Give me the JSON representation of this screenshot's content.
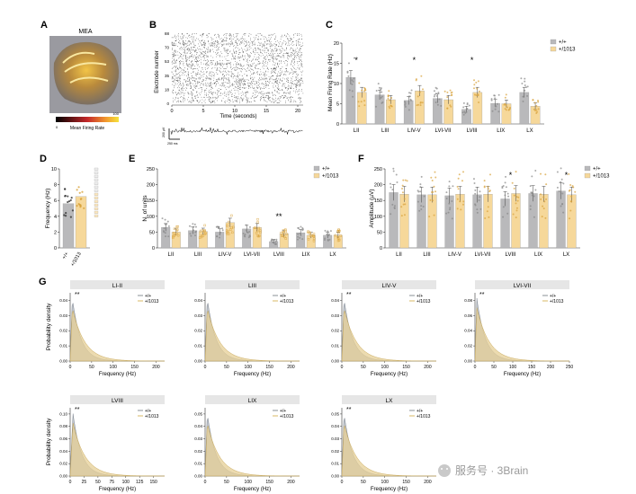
{
  "panels": {
    "A": {
      "letter": "A",
      "title": "MEA",
      "scale_min": "0",
      "scale_max": "100",
      "scale_label": "Mean Firing Rate"
    },
    "B": {
      "letter": "B",
      "ylabel": "Electrode number",
      "yticks": [
        "88",
        "70",
        "53",
        "35",
        "18",
        "0"
      ],
      "xticks": [
        "0",
        "5",
        "10",
        "15",
        "20"
      ],
      "xlabel": "Time (seconds)",
      "scale_v": "200 µV",
      "scale_t": "250 ms"
    },
    "C": {
      "letter": "C",
      "ylabel": "Mean Firing Rate (Hz)",
      "yticks": [
        "0",
        "5",
        "10",
        "15",
        "20"
      ],
      "ymax": 20,
      "legend": [
        "+/+",
        "+/1013"
      ],
      "groups": [
        "LII",
        "LIII",
        "LIV-V",
        "LVI-VII",
        "LVIII",
        "LIX",
        "LX"
      ],
      "wt": [
        11.5,
        7.2,
        5.8,
        6.3,
        3.6,
        5.1,
        7.8
      ],
      "mut": [
        7.8,
        6.0,
        8.2,
        6.0,
        7.8,
        5.0,
        4.4
      ],
      "sig": [
        "*",
        "",
        "*",
        "",
        "*",
        "",
        ""
      ]
    },
    "D": {
      "letter": "D",
      "ylabel": "Frequency (Hz)",
      "yticks": [
        "0",
        "2",
        "4",
        "6",
        "8",
        "10"
      ],
      "ymax": 10,
      "xticks": [
        "+/+",
        "+/1013"
      ],
      "wt": 5.6,
      "mut": 6.5
    },
    "E": {
      "letter": "E",
      "ylabel": "N. of units",
      "yticks": [
        "0",
        "50",
        "100",
        "150",
        "200",
        "250"
      ],
      "ymax": 250,
      "legend": [
        "+/+",
        "+/1013"
      ],
      "groups": [
        "LII",
        "LIII",
        "LIV-V",
        "LVI-VII",
        "LVIII",
        "LIX",
        "LX"
      ],
      "wt": [
        65,
        55,
        50,
        60,
        20,
        48,
        40
      ],
      "mut": [
        50,
        52,
        80,
        65,
        45,
        40,
        40
      ],
      "sig": [
        "",
        "",
        "",
        "",
        "**",
        "",
        ""
      ]
    },
    "F": {
      "letter": "F",
      "ylabel": "Amplitude (µV)",
      "yticks": [
        "0",
        "50",
        "100",
        "150",
        "200",
        "250"
      ],
      "ymax": 250,
      "legend": [
        "+/+",
        "+/1013"
      ],
      "groups": [
        "LII",
        "LIII",
        "LIV-V",
        "LVI-VII",
        "LVIII",
        "LIX",
        "LX"
      ],
      "wt": [
        175,
        168,
        165,
        168,
        155,
        172,
        180
      ],
      "mut": [
        170,
        168,
        170,
        170,
        172,
        170,
        168
      ],
      "sig": [
        "",
        "",
        "",
        "",
        "*",
        "",
        "*"
      ]
    },
    "G": {
      "letter": "G",
      "ylabel": "Probability density",
      "xlabel": "Frequency (Hz)",
      "legend": [
        "+/+",
        "+/1013"
      ],
      "plots": [
        {
          "title": "LI-II",
          "sig": "**",
          "yticks": [
            "0.00",
            "0.01",
            "0.02",
            "0.03",
            "0.04"
          ],
          "xticks": [
            "0",
            "50",
            "100",
            "150",
            "200"
          ],
          "ymax": 0.045,
          "xmax": 220
        },
        {
          "title": "LIII",
          "sig": "",
          "yticks": [
            "0.00",
            "0.01",
            "0.02",
            "0.03",
            "0.04"
          ],
          "xticks": [
            "0",
            "50",
            "100",
            "150",
            "200"
          ],
          "ymax": 0.045,
          "xmax": 220
        },
        {
          "title": "LIV-V",
          "sig": "**",
          "yticks": [
            "0.00",
            "0.01",
            "0.02",
            "0.03",
            "0.04"
          ],
          "xticks": [
            "0",
            "50",
            "100",
            "150",
            "200"
          ],
          "ymax": 0.045,
          "xmax": 220
        },
        {
          "title": "LVI-VII",
          "sig": "**",
          "yticks": [
            "0.00",
            "0.02",
            "0.04",
            "0.06",
            "0.08"
          ],
          "xticks": [
            "0",
            "50",
            "100",
            "150",
            "200",
            "250"
          ],
          "ymax": 0.09,
          "xmax": 250
        },
        {
          "title": "LVIII",
          "sig": "**",
          "yticks": [
            "0.00",
            "0.02",
            "0.04",
            "0.06",
            "0.08",
            "0.10"
          ],
          "xticks": [
            "0",
            "25",
            "50",
            "75",
            "100",
            "125",
            "150"
          ],
          "ymax": 0.11,
          "xmax": 170
        },
        {
          "title": "LIX",
          "sig": "",
          "yticks": [
            "0.00",
            "0.01",
            "0.02",
            "0.03",
            "0.04",
            "0.05"
          ],
          "xticks": [
            "0",
            "50",
            "100",
            "150",
            "200"
          ],
          "ymax": 0.055,
          "xmax": 220
        },
        {
          "title": "LX",
          "sig": "**",
          "yticks": [
            "0.00",
            "0.01",
            "0.02",
            "0.03",
            "0.04",
            "0.05"
          ],
          "xticks": [
            "0",
            "50",
            "100",
            "150",
            "200"
          ],
          "ymax": 0.055,
          "xmax": 220
        }
      ]
    }
  },
  "watermark": "服务号 · 3Brain",
  "colors": {
    "wt": "#b9b9bb",
    "mut": "#f6d89a",
    "wt_dot": "#888888",
    "mut_dot": "#d8a23c",
    "heat_lo": "#000000",
    "heat_mid": "#c4282a",
    "heat_hi": "#f5e33c"
  }
}
